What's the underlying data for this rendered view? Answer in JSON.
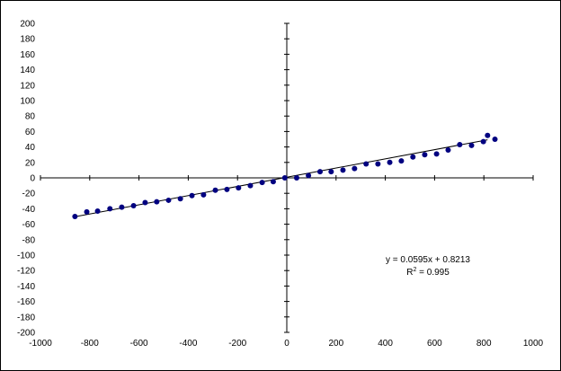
{
  "chart_data": {
    "type": "scatter",
    "title": "",
    "xlabel": "",
    "ylabel": "",
    "xlim": [
      -1000,
      1000
    ],
    "ylim": [
      -200,
      200
    ],
    "x_ticks": [
      -1000,
      -800,
      -600,
      -400,
      -200,
      0,
      200,
      400,
      600,
      800,
      1000
    ],
    "y_ticks": [
      -200,
      -180,
      -160,
      -140,
      -120,
      -100,
      -80,
      -60,
      -40,
      -20,
      0,
      20,
      40,
      60,
      80,
      100,
      120,
      140,
      160,
      180,
      200
    ],
    "grid": false,
    "legend": "none",
    "marker_color": "#000080",
    "trendline_color": "#000000",
    "series": [
      {
        "points": [
          [
            -860,
            -50
          ],
          [
            -812,
            -44
          ],
          [
            -768,
            -43
          ],
          [
            -718,
            -40
          ],
          [
            -670,
            -38
          ],
          [
            -622,
            -36
          ],
          [
            -575,
            -32
          ],
          [
            -528,
            -31
          ],
          [
            -480,
            -29
          ],
          [
            -432,
            -27
          ],
          [
            -385,
            -23
          ],
          [
            -338,
            -22
          ],
          [
            -290,
            -16
          ],
          [
            -243,
            -15
          ],
          [
            -196,
            -13
          ],
          [
            -148,
            -10
          ],
          [
            -100,
            -6
          ],
          [
            -55,
            -5
          ],
          [
            -8,
            0
          ],
          [
            40,
            0
          ],
          [
            88,
            3
          ],
          [
            135,
            8
          ],
          [
            180,
            8
          ],
          [
            228,
            10
          ],
          [
            275,
            12
          ],
          [
            322,
            18
          ],
          [
            370,
            18
          ],
          [
            418,
            20
          ],
          [
            465,
            22
          ],
          [
            512,
            27
          ],
          [
            560,
            30
          ],
          [
            608,
            31
          ],
          [
            655,
            36
          ],
          [
            702,
            43
          ],
          [
            750,
            42
          ],
          [
            798,
            47
          ],
          [
            845,
            50
          ],
          [
            815,
            55
          ]
        ]
      }
    ],
    "trendline": {
      "slope": 0.0595,
      "intercept": 0.8213,
      "x_range": [
        -860,
        815
      ],
      "equation": "y = 0.0595x + 0.8213",
      "r2_label": "R",
      "r2_sup": "2",
      "r2_value": " = 0.995"
    }
  }
}
